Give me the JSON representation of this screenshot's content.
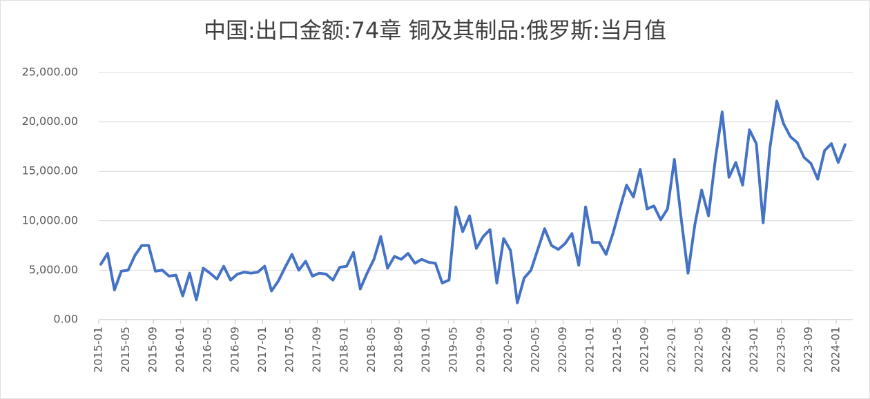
{
  "chart_data": {
    "type": "line",
    "title": "中国:出口金额:74章 铜及其制品:俄罗斯:当月值",
    "categories": [
      "2015-01",
      null,
      null,
      null,
      "2015-05",
      null,
      null,
      null,
      "2015-09",
      null,
      null,
      null,
      "2016-01",
      null,
      null,
      null,
      "2016-05",
      null,
      null,
      null,
      "2016-09",
      null,
      null,
      null,
      "2017-01",
      null,
      null,
      null,
      "2017-05",
      null,
      null,
      null,
      "2017-09",
      null,
      null,
      null,
      "2018-01",
      null,
      null,
      null,
      "2018-05",
      null,
      null,
      null,
      "2018-09",
      null,
      null,
      null,
      "2019-01",
      null,
      null,
      null,
      "2019-05",
      null,
      null,
      null,
      "2019-09",
      null,
      null,
      null,
      "2020-01",
      null,
      null,
      null,
      "2020-05",
      null,
      null,
      null,
      "2020-09",
      null,
      null,
      null,
      "2021-01",
      null,
      null,
      null,
      "2021-05",
      null,
      null,
      null,
      "2021-09",
      null,
      null,
      null,
      "2022-01",
      null,
      null,
      null,
      "2022-05",
      null,
      null,
      null,
      "2022-09",
      null,
      null,
      null,
      "2023-01",
      null,
      null,
      null,
      "2023-05",
      null,
      null,
      null,
      "2023-09",
      null,
      null,
      null,
      "2024-01",
      null
    ],
    "values": [
      5600,
      6700,
      3000,
      4900,
      5000,
      6500,
      7500,
      7500,
      4900,
      5000,
      4400,
      4500,
      2400,
      4700,
      2000,
      5200,
      4700,
      4100,
      5400,
      4000,
      4600,
      4800,
      4700,
      4800,
      5400,
      2900,
      3900,
      5300,
      6600,
      5000,
      5900,
      4400,
      4700,
      4600,
      4000,
      5300,
      5400,
      6800,
      3100,
      4700,
      6100,
      8400,
      5200,
      6400,
      6100,
      6700,
      5700,
      6100,
      5800,
      5700,
      3700,
      4000,
      11400,
      8900,
      10500,
      7200,
      8400,
      9100,
      3700,
      8200,
      7000,
      1700,
      4200,
      5000,
      7100,
      9200,
      7500,
      7100,
      7700,
      8700,
      5500,
      11400,
      7800,
      7800,
      6600,
      8700,
      11200,
      13600,
      12400,
      15200,
      11200,
      11500,
      10100,
      11200,
      16200,
      10200,
      4700,
      9600,
      13100,
      10500,
      16200,
      21000,
      14400,
      15900,
      13600,
      19200,
      17800,
      9800,
      17400,
      22100,
      19800,
      18500,
      17900,
      16400,
      15800,
      14200,
      17100,
      17800,
      15900,
      17700
    ],
    "color": "#4472c4",
    "ylim": [
      0,
      25000
    ],
    "yticks": [
      {
        "value": 0,
        "label": "0.00"
      },
      {
        "value": 5000,
        "label": "5,000.00"
      },
      {
        "value": 10000,
        "label": "10,000.00"
      },
      {
        "value": 15000,
        "label": "15,000.00"
      },
      {
        "value": 20000,
        "label": "20,000.00"
      },
      {
        "value": 25000,
        "label": "25,000.00"
      }
    ],
    "grid": true
  }
}
